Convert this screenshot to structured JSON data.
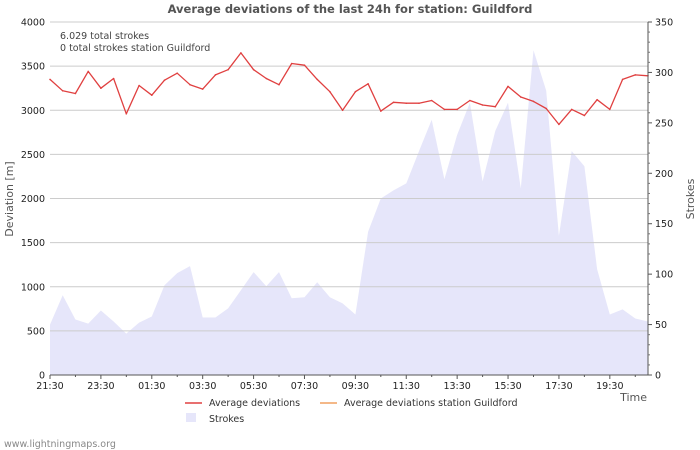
{
  "chart_data": {
    "type": "line",
    "title": "Average deviations of the last 24h for station: Guildford",
    "info_lines": [
      "6.029 total strokes",
      "0 total strokes station Guildford"
    ],
    "xlabel": "Time",
    "ylabel": "Deviation  [m]",
    "y2label": "Strokes",
    "ylim": [
      0,
      4000
    ],
    "y2lim": [
      0,
      350
    ],
    "yticks": [
      0,
      500,
      1000,
      1500,
      2000,
      2500,
      3000,
      3500,
      4000
    ],
    "y2ticks": [
      0,
      50,
      100,
      150,
      200,
      250,
      300,
      350
    ],
    "x_range_hours": [
      0,
      23.5
    ],
    "xtick_hours": [
      0,
      2,
      4,
      6,
      8,
      10,
      12,
      14,
      16,
      18,
      20,
      22
    ],
    "xticks": [
      "21:30",
      "23:30",
      "01:30",
      "03:30",
      "05:30",
      "07:30",
      "09:30",
      "11:30",
      "13:30",
      "15:30",
      "17:30",
      "19:30"
    ],
    "series": [
      {
        "name": "Average deviations",
        "color": "#e04040",
        "axis": "left",
        "hours": [
          0,
          0.5,
          1,
          1.5,
          2,
          2.5,
          3,
          3.5,
          4,
          4.5,
          5,
          5.5,
          6,
          6.5,
          7,
          7.5,
          8,
          8.5,
          9,
          9.5,
          10,
          10.5,
          11,
          11.5,
          12,
          12.5,
          13,
          13.5,
          14,
          14.5,
          15,
          15.5,
          16,
          16.5,
          17,
          17.5,
          18,
          18.5,
          19,
          19.5,
          20,
          20.5,
          21,
          21.5,
          22,
          22.5,
          23,
          23.5
        ],
        "values": [
          3350,
          3220,
          3190,
          3440,
          3250,
          3360,
          2960,
          3280,
          3170,
          3340,
          3420,
          3290,
          3240,
          3400,
          3460,
          3650,
          3460,
          3360,
          3290,
          3530,
          3510,
          3350,
          3210,
          3000,
          3210,
          3300,
          2990,
          3090,
          3080,
          3080,
          3110,
          3010,
          3010,
          3110,
          3060,
          3040,
          3270,
          3150,
          3100,
          3020,
          2840,
          3010,
          2940,
          3120,
          3010,
          3350,
          3400,
          3390
        ]
      },
      {
        "name": "Average deviations station Guildford",
        "color": "#f0a060",
        "axis": "left",
        "hours": [],
        "values": []
      },
      {
        "name": "Strokes",
        "color": "#e6e6fa",
        "axis": "right",
        "hours": [
          0,
          0.5,
          1,
          1.5,
          2,
          2.5,
          3,
          3.5,
          4,
          4.5,
          5,
          5.5,
          6,
          6.5,
          7,
          7.5,
          8,
          8.5,
          9,
          9.5,
          10,
          10.5,
          11,
          11.5,
          12,
          12.5,
          13,
          13.5,
          14,
          14.5,
          15,
          15.5,
          16,
          16.5,
          17,
          17.5,
          18,
          18.5,
          19,
          19.5,
          20,
          20.5,
          21,
          21.5,
          22,
          22.5,
          23,
          23.5
        ],
        "values": [
          50,
          79,
          55,
          51,
          64,
          53,
          41,
          52,
          58,
          89,
          101,
          108,
          57,
          57,
          66,
          84,
          102,
          88,
          102,
          76,
          77,
          92,
          77,
          71,
          60,
          142,
          175,
          183,
          190,
          222,
          253,
          194,
          238,
          270,
          192,
          242,
          270,
          185,
          322,
          282,
          138,
          222,
          207,
          105,
          60,
          65,
          56,
          53
        ]
      }
    ],
    "legend_position": "bottom",
    "grid": true
  },
  "credit": "www.lightningmaps.org"
}
